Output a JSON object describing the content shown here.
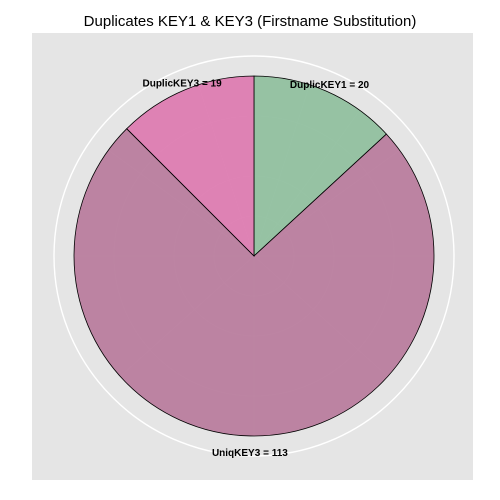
{
  "chart_data": {
    "type": "pie",
    "title": "Duplicates KEY1 & KEY3 (Firstname Substitution)",
    "slices": [
      {
        "key": "DuplicKEY1",
        "label": "DuplicKEY1 = 20",
        "value": 20,
        "color": "#8fbf9d"
      },
      {
        "key": "UniqKEY3",
        "label": "UniqKEY3 = 113",
        "value": 113,
        "color": "#b87b9c"
      },
      {
        "key": "DuplicKEY3",
        "label": "DuplicKEY3 = 19",
        "value": 19,
        "color": "#dd7ab0"
      }
    ],
    "start": "top",
    "direction": "clockwise",
    "grid": true,
    "panel_background": "#e5e5e5",
    "grid_color": "#f2f2f2",
    "slice_border_color": "#000000"
  }
}
